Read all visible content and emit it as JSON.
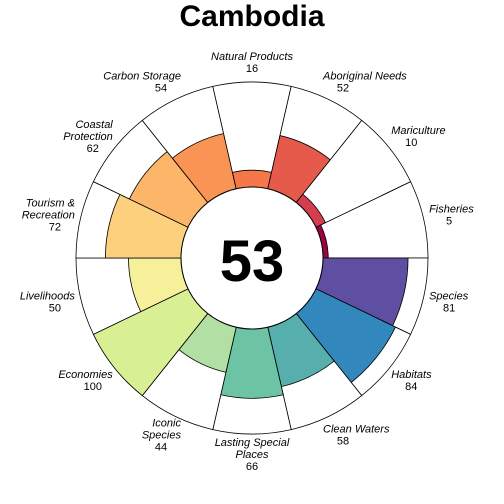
{
  "chart_data": {
    "type": "flower",
    "title": "Cambodia",
    "center_score": "53",
    "scale_max": 100,
    "petals": [
      {
        "name": [
          "Fisheries"
        ],
        "score": 5,
        "color": "#9E0142"
      },
      {
        "name": [
          "Species"
        ],
        "score": 81,
        "color": "#5E4FA2"
      },
      {
        "name": [
          "Habitats"
        ],
        "score": 84,
        "color": "#3288BD"
      },
      {
        "name": [
          "Clean Waters"
        ],
        "score": 58,
        "color": "#56AFAC"
      },
      {
        "name": [
          "Lasting Special",
          "Places"
        ],
        "score": 66,
        "color": "#6CC4A4"
      },
      {
        "name": [
          "Iconic",
          "Species"
        ],
        "score": 44,
        "color": "#B2DFA4"
      },
      {
        "name": [
          "Economies"
        ],
        "score": 100,
        "color": "#D9EF94"
      },
      {
        "name": [
          "Livelihoods"
        ],
        "score": 50,
        "color": "#F6F09A"
      },
      {
        "name": [
          "Tourism &",
          "Recreation"
        ],
        "score": 72,
        "color": "#FDD07D"
      },
      {
        "name": [
          "Coastal",
          "Protection"
        ],
        "score": 62,
        "color": "#FDB569"
      },
      {
        "name": [
          "Carbon Storage"
        ],
        "score": 54,
        "color": "#F99455"
      },
      {
        "name": [
          "Natural Products"
        ],
        "score": 16,
        "color": "#F67848"
      },
      {
        "name": [
          "Aboriginal Needs"
        ],
        "score": 52,
        "color": "#E65A4B"
      },
      {
        "name": [
          "Mariculture"
        ],
        "score": 10,
        "color": "#D53E4F"
      }
    ]
  }
}
